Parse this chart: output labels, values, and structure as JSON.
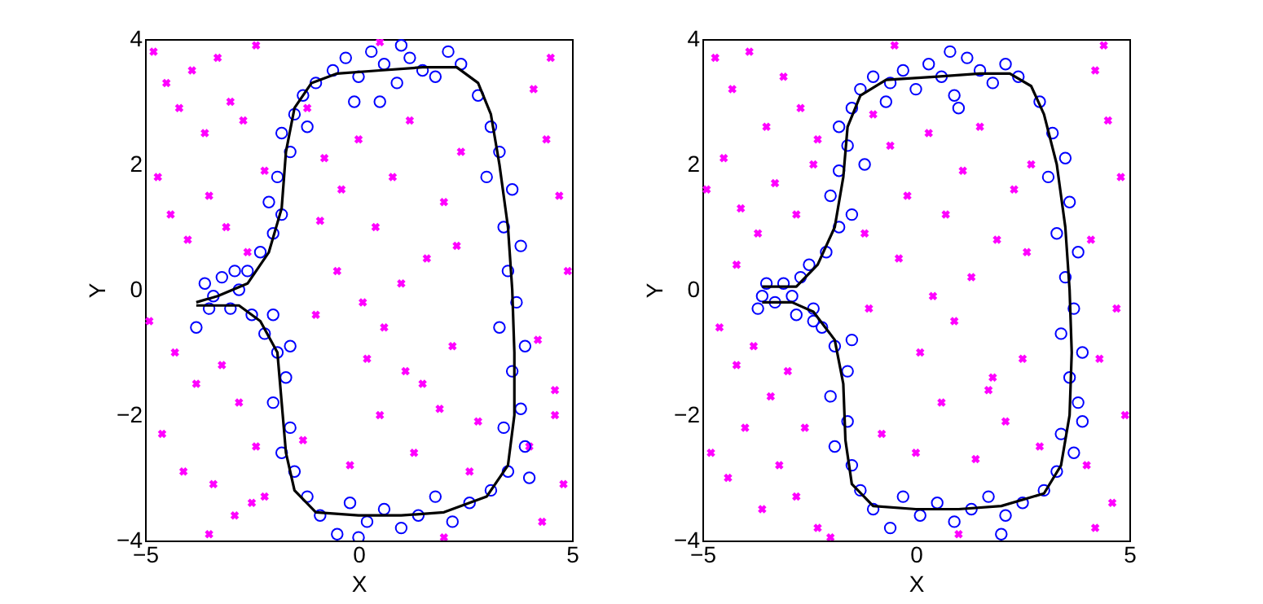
{
  "chart_data": [
    {
      "type": "scatter",
      "xlabel": "X",
      "ylabel": "Y",
      "xlim": [
        -5,
        5
      ],
      "ylim": [
        -4,
        4
      ],
      "xticks": [
        -5,
        0,
        5
      ],
      "yticks": [
        -4,
        -2,
        0,
        2,
        4
      ],
      "grid": false,
      "legend": false,
      "series": [
        {
          "color": "#ff00ff",
          "marker": "cross",
          "x": [
            -4.8,
            -4.5,
            -4.2,
            -3.9,
            -3.6,
            -3.3,
            -3.0,
            -2.7,
            -2.4,
            -4.7,
            -4.4,
            -4.0,
            -3.5,
            -3.1,
            -2.6,
            -2.2,
            -4.9,
            -4.3,
            -3.8,
            -3.2,
            -2.8,
            -2.4,
            -4.6,
            -4.1,
            -3.4,
            -2.9,
            -2.5,
            -1.2,
            -0.8,
            -0.4,
            0.0,
            0.4,
            0.8,
            1.2,
            1.6,
            2.0,
            2.4,
            -1.0,
            -0.5,
            0.2,
            0.6,
            1.0,
            1.5,
            2.2,
            2.8,
            -1.3,
            -0.2,
            0.5,
            1.3,
            1.9,
            2.6,
            -0.9,
            0.1,
            1.1,
            2.3,
            4.1,
            4.4,
            4.7,
            4.9,
            4.2,
            4.6,
            4.0,
            4.8,
            4.3,
            4.5,
            0.5,
            -3.5,
            2.0,
            4.6,
            -2.2
          ],
          "values": [
            3.8,
            3.3,
            2.9,
            3.5,
            2.5,
            3.7,
            3.0,
            2.7,
            3.9,
            1.8,
            1.2,
            0.8,
            1.5,
            1.0,
            0.6,
            1.9,
            -0.5,
            -1.0,
            -1.5,
            -1.2,
            -1.8,
            -2.5,
            -2.3,
            -2.9,
            -3.1,
            -3.6,
            -3.4,
            2.9,
            2.1,
            1.6,
            2.4,
            1.0,
            1.8,
            2.7,
            0.5,
            1.4,
            2.2,
            -0.4,
            0.3,
            -1.1,
            -0.6,
            0.1,
            -1.5,
            -0.9,
            -2.1,
            -2.4,
            -2.8,
            -2.0,
            -2.6,
            -1.9,
            -2.9,
            1.1,
            -0.2,
            -1.3,
            0.7,
            3.2,
            2.4,
            1.5,
            0.3,
            -0.8,
            -1.6,
            -2.5,
            -3.1,
            -3.7,
            3.7,
            3.95,
            -3.9,
            -3.95,
            -2.0,
            -3.3
          ]
        },
        {
          "color": "#0000ff",
          "marker": "circle",
          "x": [
            -3.8,
            -3.6,
            -3.4,
            -3.2,
            -3.0,
            -2.8,
            -2.6,
            -2.5,
            -3.5,
            -2.9,
            -2.3,
            -2.0,
            -2.1,
            -1.8,
            -1.9,
            -1.6,
            -1.8,
            -1.5,
            -1.3,
            -1.0,
            -1.2,
            -0.6,
            -0.3,
            0.0,
            0.3,
            0.6,
            0.9,
            1.2,
            1.5,
            1.8,
            2.1,
            2.4,
            0.5,
            1.0,
            -0.1,
            2.8,
            3.1,
            3.3,
            3.0,
            3.6,
            3.4,
            3.8,
            3.5,
            3.7,
            3.3,
            3.9,
            3.6,
            3.8,
            3.4,
            3.9,
            3.5,
            3.1,
            4.0,
            2.6,
            2.2,
            1.8,
            1.4,
            1.0,
            0.6,
            0.2,
            -0.2,
            -0.5,
            -0.9,
            -1.2,
            0.0,
            -1.5,
            -1.8,
            -1.6,
            -2.0,
            -1.7,
            -1.9,
            -2.2,
            -2.0,
            -1.6
          ],
          "values": [
            -0.6,
            0.1,
            -0.1,
            0.2,
            -0.3,
            0.0,
            0.3,
            -0.4,
            -0.3,
            0.3,
            0.6,
            0.9,
            1.4,
            1.2,
            1.8,
            2.2,
            2.5,
            2.8,
            3.1,
            3.3,
            2.6,
            3.5,
            3.7,
            3.4,
            3.8,
            3.6,
            3.3,
            3.7,
            3.5,
            3.4,
            3.8,
            3.6,
            3.0,
            3.9,
            3.0,
            3.1,
            2.6,
            2.2,
            1.8,
            1.6,
            1.0,
            0.7,
            0.3,
            -0.2,
            -0.6,
            -0.9,
            -1.3,
            -1.9,
            -2.2,
            -2.5,
            -2.9,
            -3.2,
            -3.0,
            -3.4,
            -3.7,
            -3.3,
            -3.6,
            -3.8,
            -3.5,
            -3.7,
            -3.4,
            -3.9,
            -3.6,
            -3.3,
            -3.95,
            -2.9,
            -2.6,
            -2.2,
            -1.8,
            -1.4,
            -1.0,
            -0.7,
            -0.4,
            -0.9
          ]
        },
        {
          "type": "line",
          "color": "#000000",
          "marker": "none",
          "x": [
            -3.8,
            -3.3,
            -2.6,
            -2.1,
            -1.8,
            -1.7,
            -1.5,
            -1.1,
            -0.5,
            0.5,
            1.5,
            2.3,
            2.8,
            3.1,
            3.3,
            3.5,
            3.6,
            3.65,
            3.65,
            3.5,
            3.0,
            2.0,
            1.0,
            0.0,
            -1.0,
            -1.5,
            -1.7,
            -1.8,
            -1.9,
            -2.3,
            -2.8,
            -3.8
          ],
          "values": [
            -0.2,
            -0.1,
            0.1,
            0.6,
            1.3,
            2.2,
            2.9,
            3.3,
            3.45,
            3.5,
            3.55,
            3.55,
            3.3,
            2.8,
            2.0,
            1.0,
            0.0,
            -1.0,
            -2.0,
            -2.8,
            -3.3,
            -3.55,
            -3.6,
            -3.6,
            -3.55,
            -3.2,
            -2.6,
            -1.8,
            -1.0,
            -0.5,
            -0.25,
            -0.25
          ]
        }
      ]
    },
    {
      "type": "scatter",
      "xlabel": "X",
      "ylabel": "Y",
      "xlim": [
        -5,
        5
      ],
      "ylim": [
        -4,
        4
      ],
      "xticks": [
        -5,
        0,
        5
      ],
      "yticks": [
        -4,
        -2,
        0,
        2,
        4
      ],
      "grid": false,
      "legend": false,
      "series": [
        {
          "color": "#ff00ff",
          "marker": "cross",
          "x": [
            -4.7,
            -4.3,
            -3.9,
            -3.5,
            -3.1,
            -2.7,
            -2.3,
            -4.9,
            -4.5,
            -4.1,
            -3.7,
            -3.3,
            -2.8,
            -2.4,
            -4.6,
            -4.2,
            -3.8,
            -3.4,
            -3.0,
            -2.6,
            -4.8,
            -4.4,
            -4.0,
            -3.6,
            -3.2,
            -2.8,
            -2.3,
            -1.0,
            -0.6,
            -0.2,
            0.3,
            0.7,
            1.1,
            1.5,
            1.9,
            2.3,
            2.7,
            -1.1,
            -0.4,
            0.1,
            0.9,
            1.3,
            1.8,
            2.5,
            -0.8,
            0.0,
            0.6,
            1.4,
            2.1,
            2.9,
            -1.2,
            0.4,
            1.7,
            2.6,
            4.2,
            4.5,
            4.8,
            4.1,
            4.7,
            4.3,
            4.9,
            4.0,
            4.6,
            4.4,
            -0.5,
            1.0,
            -2.0,
            4.2,
            -4.2
          ],
          "values": [
            3.7,
            3.2,
            3.8,
            2.6,
            3.4,
            2.9,
            2.4,
            1.6,
            2.1,
            1.3,
            0.9,
            1.7,
            1.2,
            2.0,
            -0.6,
            -1.2,
            -0.9,
            -1.7,
            -1.3,
            -2.2,
            -2.6,
            -3.0,
            -2.2,
            -3.5,
            -2.8,
            -3.3,
            -3.8,
            2.8,
            2.3,
            1.5,
            2.5,
            1.2,
            1.9,
            2.6,
            0.8,
            1.6,
            2.0,
            -0.3,
            0.5,
            -1.0,
            -0.5,
            0.2,
            -1.4,
            -1.1,
            -2.3,
            -2.6,
            -1.8,
            -2.7,
            -2.1,
            -2.5,
            0.9,
            -0.1,
            -1.6,
            0.6,
            3.5,
            2.7,
            1.8,
            0.8,
            -0.3,
            -1.1,
            -2.0,
            -2.8,
            -3.4,
            3.9,
            3.9,
            -3.9,
            -3.95,
            -3.8,
            0.4
          ]
        },
        {
          "color": "#0000ff",
          "marker": "circle",
          "x": [
            -3.7,
            -3.5,
            -3.3,
            -3.1,
            -2.9,
            -2.7,
            -2.5,
            -2.4,
            -3.6,
            -2.8,
            -2.1,
            -1.8,
            -2.0,
            -1.5,
            -1.8,
            -1.6,
            -1.8,
            -1.5,
            -1.3,
            -1.0,
            -1.2,
            -0.6,
            -0.3,
            0.0,
            0.3,
            0.6,
            0.9,
            1.2,
            1.5,
            1.8,
            2.1,
            2.4,
            0.8,
            -0.7,
            1.0,
            2.9,
            3.2,
            3.5,
            3.1,
            3.6,
            3.3,
            3.8,
            3.5,
            3.7,
            3.4,
            3.9,
            3.6,
            3.8,
            3.4,
            3.7,
            3.3,
            3.0,
            3.9,
            2.5,
            2.1,
            1.7,
            1.3,
            0.9,
            0.5,
            0.1,
            -0.3,
            -0.6,
            -1.0,
            -1.3,
            2.0,
            -1.5,
            -1.9,
            -1.6,
            -2.0,
            -1.6,
            -1.9,
            -2.2,
            -2.4,
            -1.5
          ],
          "values": [
            -0.3,
            0.1,
            -0.2,
            0.1,
            -0.1,
            0.2,
            0.4,
            -0.3,
            -0.1,
            -0.4,
            0.6,
            1.0,
            1.5,
            1.2,
            1.9,
            2.3,
            2.6,
            2.9,
            3.2,
            3.4,
            2.0,
            3.3,
            3.5,
            3.2,
            3.6,
            3.4,
            3.1,
            3.7,
            3.5,
            3.3,
            3.6,
            3.4,
            3.8,
            3.0,
            2.9,
            3.0,
            2.5,
            2.1,
            1.8,
            1.4,
            0.9,
            0.6,
            0.2,
            -0.3,
            -0.7,
            -1.0,
            -1.4,
            -1.8,
            -2.3,
            -2.6,
            -2.9,
            -3.2,
            -2.1,
            -3.4,
            -3.6,
            -3.3,
            -3.5,
            -3.7,
            -3.4,
            -3.6,
            -3.3,
            -3.8,
            -3.5,
            -3.2,
            -3.9,
            -2.8,
            -2.5,
            -2.1,
            -1.7,
            -1.3,
            -0.9,
            -0.6,
            -0.5,
            -0.8
          ]
        },
        {
          "type": "line",
          "color": "#000000",
          "marker": "none",
          "x": [
            -3.6,
            -2.8,
            -2.3,
            -1.9,
            -1.7,
            -1.6,
            -1.3,
            -0.7,
            0.5,
            1.5,
            2.2,
            2.7,
            3.0,
            3.3,
            3.5,
            3.6,
            3.65,
            3.6,
            3.4,
            3.0,
            2.0,
            1.0,
            0.0,
            -1.0,
            -1.5,
            -1.65,
            -1.7,
            -1.9,
            -2.4,
            -2.9,
            -3.6
          ],
          "values": [
            0.05,
            0.05,
            0.4,
            1.0,
            1.8,
            2.6,
            3.1,
            3.35,
            3.4,
            3.45,
            3.45,
            3.25,
            2.8,
            2.0,
            1.0,
            0.0,
            -1.0,
            -2.0,
            -2.8,
            -3.25,
            -3.45,
            -3.5,
            -3.5,
            -3.45,
            -3.1,
            -2.4,
            -1.5,
            -0.8,
            -0.35,
            -0.2,
            -0.2
          ]
        }
      ]
    }
  ]
}
